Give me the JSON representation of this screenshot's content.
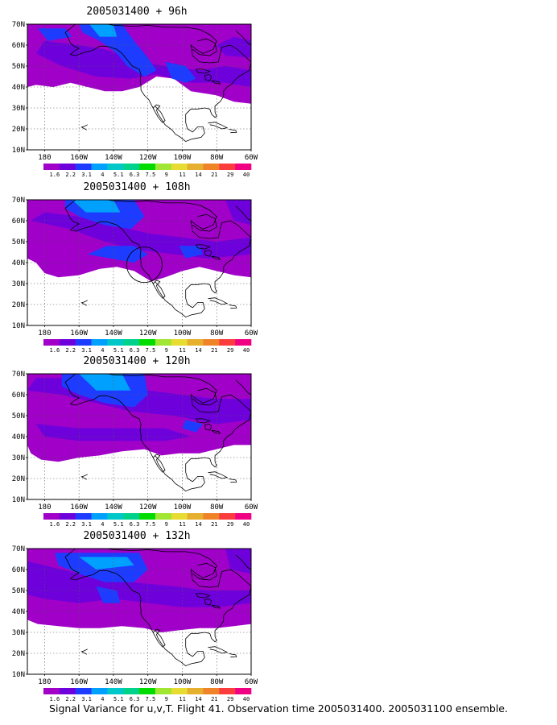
{
  "panels": [
    {
      "title": "2005031400 + 96h"
    },
    {
      "title": "2005031400 + 108h"
    },
    {
      "title": "2005031400 + 120h"
    },
    {
      "title": "2005031400 + 132h"
    }
  ],
  "lat_labels": [
    "70N",
    "60N",
    "50N",
    "40N",
    "30N",
    "20N",
    "10N"
  ],
  "lon_labels": [
    "180",
    "160W",
    "140W",
    "120W",
    "100W",
    "80W",
    "60W"
  ],
  "colorbar": {
    "labels": [
      "1.6",
      "2.2",
      "3.1",
      "4",
      "5.1",
      "6.3",
      "7.5",
      "9",
      "11",
      "14",
      "21",
      "29",
      "40"
    ],
    "colors": [
      "#a000c8",
      "#6e00dc",
      "#1e3cff",
      "#00a0ff",
      "#00c8c8",
      "#00d28c",
      "#00dc00",
      "#a0e632",
      "#e6dc32",
      "#e6af2d",
      "#f08228",
      "#fa3c3c",
      "#f00082"
    ]
  },
  "field_colors": {
    "purple": "#a000c8",
    "violet": "#6e00dc",
    "blue": "#1e3cff",
    "lightblue": "#00a0ff",
    "cyan": "#00c8c8"
  },
  "caption": "Signal Variance for u,v,T. Flight 41. Observation time 2005031400. 2005031100 ensemble."
}
